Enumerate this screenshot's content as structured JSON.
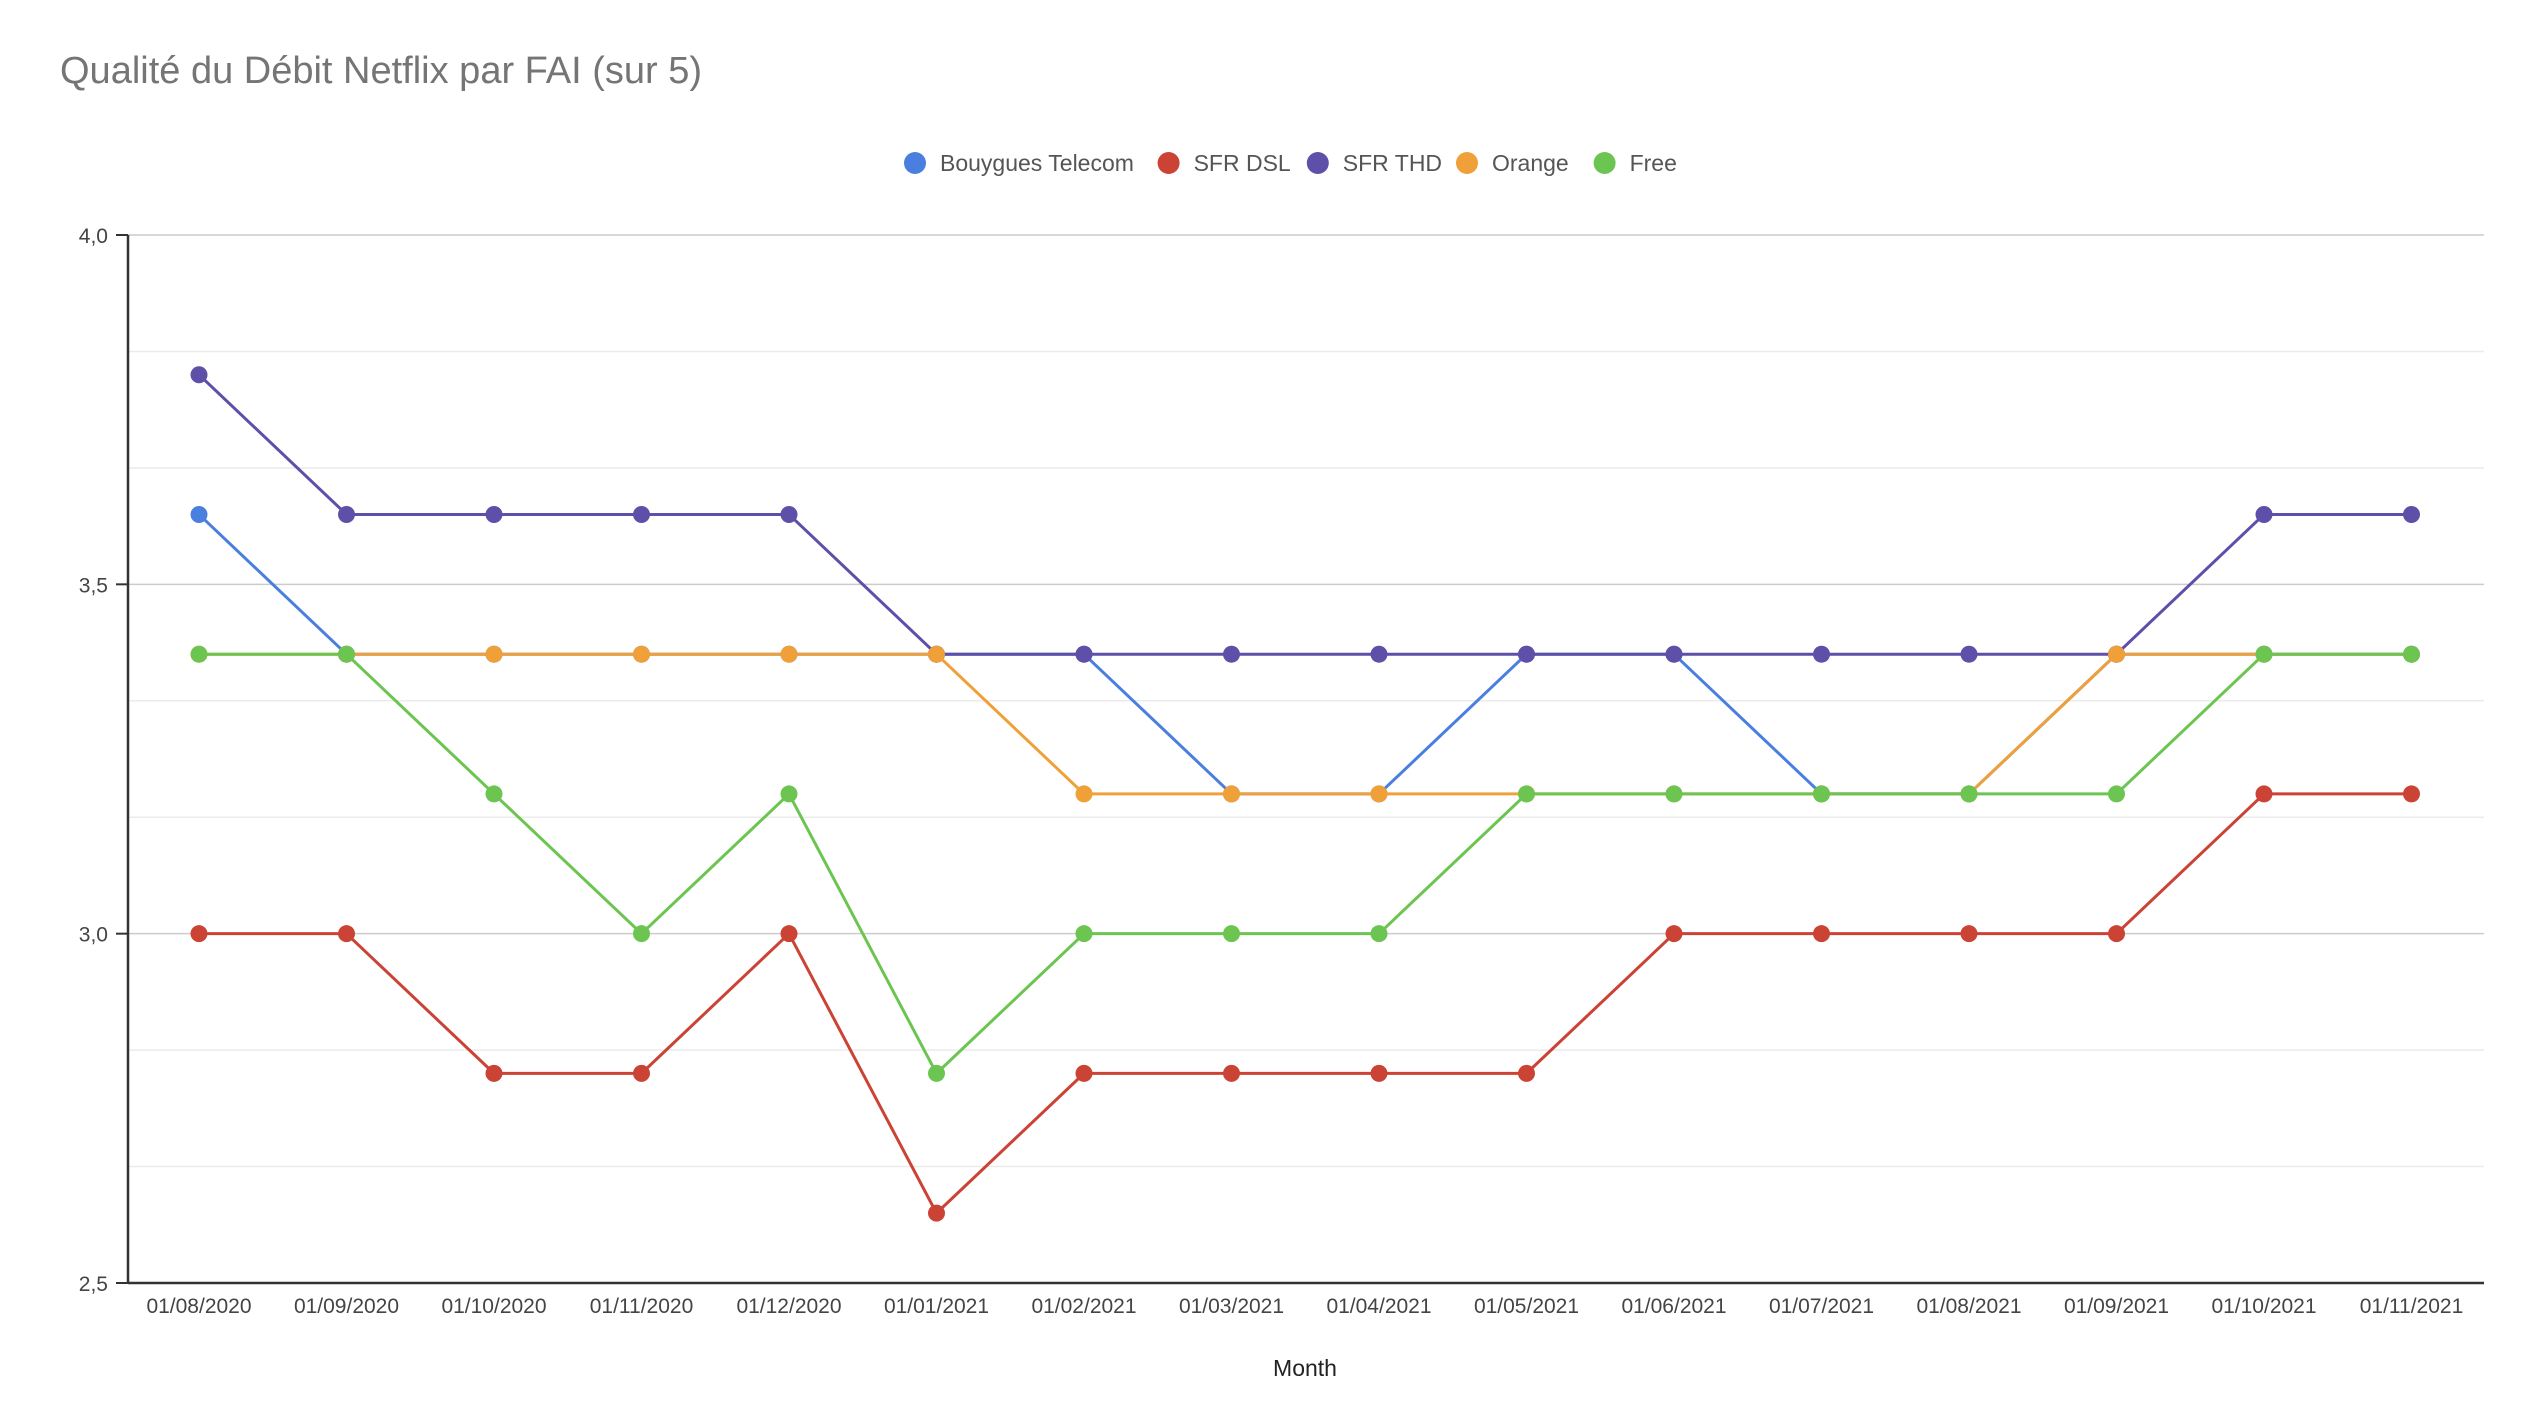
{
  "chart_data": {
    "type": "line",
    "title": "Qualité du Débit Netflix par FAI (sur 5)",
    "xlabel": "Month",
    "ylabel": "",
    "x": [
      "01/08/2020",
      "01/09/2020",
      "01/10/2020",
      "01/11/2020",
      "01/12/2020",
      "01/01/2021",
      "01/02/2021",
      "01/03/2021",
      "01/04/2021",
      "01/05/2021",
      "01/06/2021",
      "01/07/2021",
      "01/08/2021",
      "01/09/2021",
      "01/10/2021",
      "01/11/2021"
    ],
    "ylim": [
      2.5,
      4.0
    ],
    "yticks": [
      2.5,
      3.0,
      3.5,
      4.0
    ],
    "ytick_labels": [
      "2,5",
      "3,0",
      "3,5",
      "4,0"
    ],
    "minor_gridlines": true,
    "legend_position": "top",
    "series": [
      {
        "name": "Bouygues Telecom",
        "color": "#4a7fe0",
        "values": [
          3.6,
          3.4,
          3.4,
          3.4,
          3.4,
          3.4,
          3.4,
          3.2,
          3.2,
          3.4,
          3.4,
          3.2,
          3.2,
          3.4,
          3.4,
          3.4
        ]
      },
      {
        "name": "SFR DSL",
        "color": "#cb4335",
        "values": [
          3.0,
          3.0,
          2.8,
          2.8,
          3.0,
          2.6,
          2.8,
          2.8,
          2.8,
          2.8,
          3.0,
          3.0,
          3.0,
          3.0,
          3.2,
          3.2
        ]
      },
      {
        "name": "SFR THD",
        "color": "#5e4fa8",
        "values": [
          3.8,
          3.6,
          3.6,
          3.6,
          3.6,
          3.4,
          3.4,
          3.4,
          3.4,
          3.4,
          3.4,
          3.4,
          3.4,
          3.4,
          3.6,
          3.6
        ]
      },
      {
        "name": "Orange",
        "color": "#f0a039",
        "values": [
          3.4,
          3.4,
          3.4,
          3.4,
          3.4,
          3.4,
          3.2,
          3.2,
          3.2,
          3.2,
          3.2,
          3.2,
          3.2,
          3.4,
          3.4,
          3.4
        ]
      },
      {
        "name": "Free",
        "color": "#6cc551",
        "values": [
          3.4,
          3.4,
          3.2,
          3.0,
          3.2,
          2.8,
          3.0,
          3.0,
          3.0,
          3.2,
          3.2,
          3.2,
          3.2,
          3.2,
          3.4,
          3.4
        ]
      }
    ]
  }
}
